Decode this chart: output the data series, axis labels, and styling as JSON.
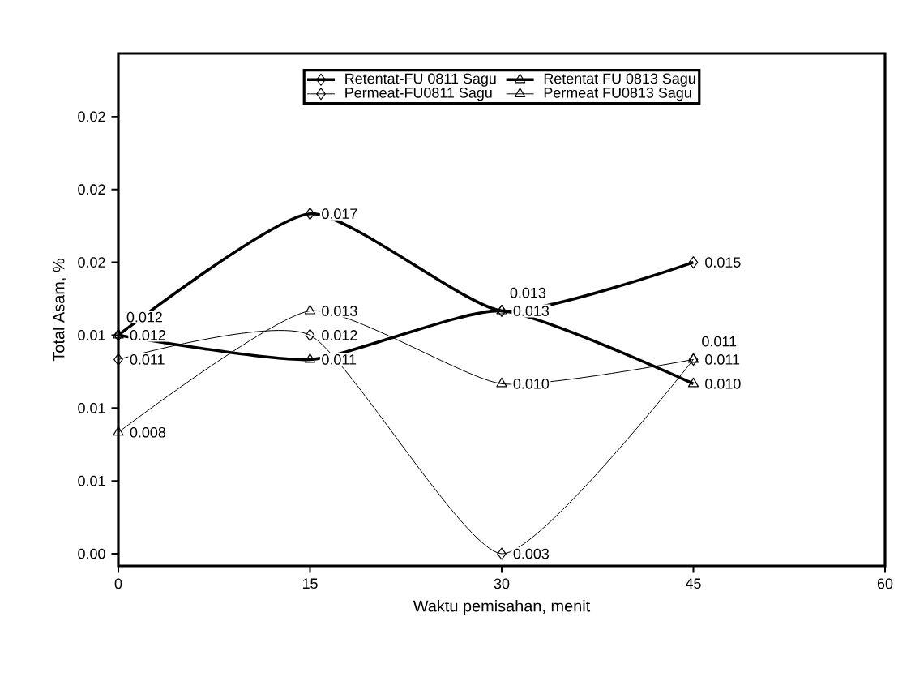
{
  "chart_data": {
    "type": "line",
    "xlabel": "Waktu pemisahan, menit",
    "ylabel": "Total Asam, %",
    "x": [
      0,
      15,
      30,
      45
    ],
    "series": [
      {
        "name": "Retentat-FU 0811 Sagu",
        "color": "#000000",
        "marker": "diamond",
        "values": [
          0.012,
          0.017,
          0.013,
          0.015
        ],
        "value_labels": [
          "0.012",
          "0.017",
          "0.013",
          "0.015"
        ]
      },
      {
        "name": "Retentat FU 0813 Sagu",
        "color": "#000000",
        "marker": "triangle",
        "values": [
          0.012,
          0.011,
          0.013,
          0.01
        ],
        "value_labels": [
          "0.012",
          "0.011",
          "0.013",
          "0.010"
        ]
      },
      {
        "name": "Permeat-FU0811 Sagu",
        "color": "#000000",
        "marker": "diamond",
        "values": [
          0.011,
          0.012,
          0.003,
          0.011
        ],
        "value_labels": [
          "0.011",
          "0.012",
          "0.003",
          "0.011"
        ]
      },
      {
        "name": "Permeat FU0813 Sagu",
        "color": "#000000",
        "marker": "triangle",
        "values": [
          0.008,
          0.013,
          0.01,
          0.011
        ],
        "value_labels": [
          "0.008",
          "0.013",
          "0.010",
          "0.011"
        ]
      }
    ],
    "xlim": [
      0,
      60
    ],
    "xticks": [
      0,
      15,
      30,
      45,
      60
    ],
    "ylim": [
      0.0025,
      0.0236
    ],
    "yticks": [
      {
        "value": 0.003,
        "label": "0.00"
      },
      {
        "value": 0.006,
        "label": "0.01"
      },
      {
        "value": 0.009,
        "label": "0.01"
      },
      {
        "value": 0.012,
        "label": "0.01"
      },
      {
        "value": 0.015,
        "label": "0.02"
      },
      {
        "value": 0.018,
        "label": "0.02"
      },
      {
        "value": 0.021,
        "label": "0.02"
      }
    ],
    "legend": "top",
    "grid": false
  }
}
